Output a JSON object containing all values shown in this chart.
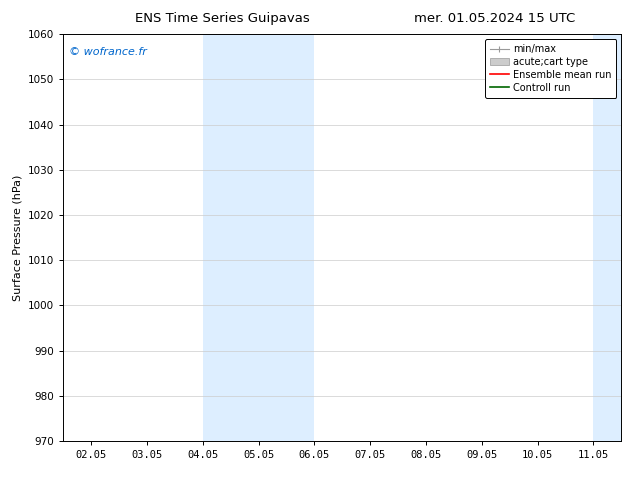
{
  "title_left": "ENS Time Series Guipavas",
  "title_right": "mer. 01.05.2024 15 UTC",
  "ylabel": "Surface Pressure (hPa)",
  "ylim": [
    970,
    1060
  ],
  "yticks": [
    970,
    980,
    990,
    1000,
    1010,
    1020,
    1030,
    1040,
    1050,
    1060
  ],
  "xtick_labels": [
    "02.05",
    "03.05",
    "04.05",
    "05.05",
    "06.05",
    "07.05",
    "08.05",
    "09.05",
    "10.05",
    "11.05"
  ],
  "xtick_positions": [
    0,
    1,
    2,
    3,
    4,
    5,
    6,
    7,
    8,
    9
  ],
  "xlim": [
    -0.5,
    9.5
  ],
  "shaded_bands": [
    {
      "x_start": 2.0,
      "x_end": 3.0,
      "color": "#ddeeff"
    },
    {
      "x_start": 3.0,
      "x_end": 4.0,
      "color": "#ddeeff"
    },
    {
      "x_start": 9.0,
      "x_end": 9.5,
      "color": "#ddeeff"
    }
  ],
  "watermark_text": "© wofrance.fr",
  "watermark_color": "#0066cc",
  "legend_entries": [
    {
      "label": "min/max",
      "color": "#aaaaaa",
      "style": "errbar"
    },
    {
      "label": "acute;cart type",
      "color": "#cccccc",
      "style": "fillbar"
    },
    {
      "label": "Ensemble mean run",
      "color": "#ff0000",
      "style": "line"
    },
    {
      "label": "Controll run",
      "color": "#008000",
      "style": "line"
    }
  ],
  "background_color": "#ffffff",
  "grid_color": "#cccccc",
  "title_fontsize": 9.5,
  "tick_fontsize": 7.5,
  "ylabel_fontsize": 8,
  "legend_fontsize": 7,
  "watermark_fontsize": 8
}
